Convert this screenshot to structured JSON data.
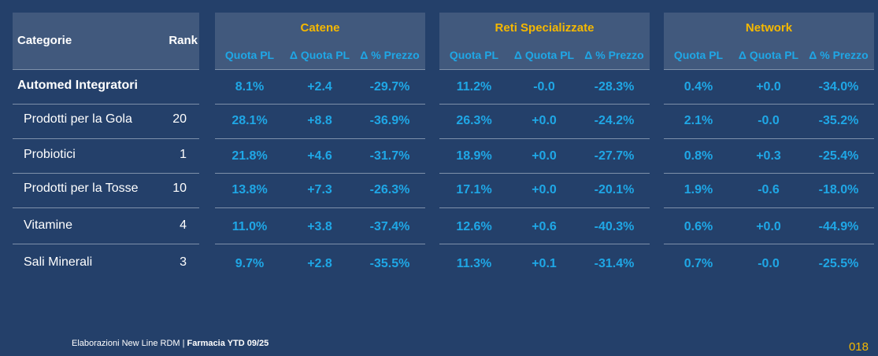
{
  "header": {
    "categories_label": "Categorie",
    "rank_label": "Rank"
  },
  "rows": [
    {
      "name": "Automed Integratori",
      "rank": ""
    },
    {
      "name": "Prodotti per la Gola",
      "rank": "20"
    },
    {
      "name": "Probiotici",
      "rank": "1"
    },
    {
      "name": "Prodotti per la Tosse",
      "rank": "10"
    },
    {
      "name": "Vitamine",
      "rank": "4"
    },
    {
      "name": "Sali Minerali",
      "rank": "3"
    }
  ],
  "subheaders": [
    "Quota PL",
    "Δ Quota PL",
    "Δ % Prezzo"
  ],
  "groups": [
    {
      "title": "Catene",
      "cells": [
        [
          "8.1%",
          "+2.4",
          "-29.7%"
        ],
        [
          "28.1%",
          "+8.8",
          "-36.9%"
        ],
        [
          "21.8%",
          "+4.6",
          "-31.7%"
        ],
        [
          "13.8%",
          "+7.3",
          "-26.3%"
        ],
        [
          "11.0%",
          "+3.8",
          "-37.4%"
        ],
        [
          "9.7%",
          "+2.8",
          "-35.5%"
        ]
      ]
    },
    {
      "title": "Reti Specializzate",
      "cells": [
        [
          "11.2%",
          "-0.0",
          "-28.3%"
        ],
        [
          "26.3%",
          "+0.0",
          "-24.2%"
        ],
        [
          "18.9%",
          "+0.0",
          "-27.7%"
        ],
        [
          "17.1%",
          "+0.0",
          "-20.1%"
        ],
        [
          "12.6%",
          "+0.6",
          "-40.3%"
        ],
        [
          "11.3%",
          "+0.1",
          "-31.4%"
        ]
      ]
    },
    {
      "title": "Network",
      "cells": [
        [
          "0.4%",
          "+0.0",
          "-34.0%"
        ],
        [
          "2.1%",
          "-0.0",
          "-35.2%"
        ],
        [
          "0.8%",
          "+0.3",
          "-25.4%"
        ],
        [
          "1.9%",
          "-0.6",
          "-18.0%"
        ],
        [
          "0.6%",
          "+0.0",
          "-44.9%"
        ],
        [
          "0.7%",
          "-0.0",
          "-25.5%"
        ]
      ]
    }
  ],
  "footer": {
    "source": "Elaborazioni New Line RDM | ",
    "source_bold": "Farmacia YTD 09/25"
  },
  "page_number": "018",
  "colors": {
    "background": "#24406a",
    "header_bg": "#41597d",
    "accent_yellow": "#f5b800",
    "value_blue": "#1fa7e6"
  }
}
